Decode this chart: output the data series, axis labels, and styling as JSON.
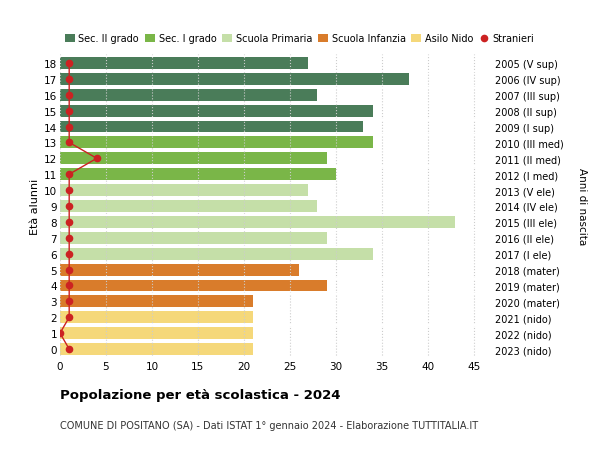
{
  "ages": [
    18,
    17,
    16,
    15,
    14,
    13,
    12,
    11,
    10,
    9,
    8,
    7,
    6,
    5,
    4,
    3,
    2,
    1,
    0
  ],
  "years": [
    "2005 (V sup)",
    "2006 (IV sup)",
    "2007 (III sup)",
    "2008 (II sup)",
    "2009 (I sup)",
    "2010 (III med)",
    "2011 (II med)",
    "2012 (I med)",
    "2013 (V ele)",
    "2014 (IV ele)",
    "2015 (III ele)",
    "2016 (II ele)",
    "2017 (I ele)",
    "2018 (mater)",
    "2019 (mater)",
    "2020 (mater)",
    "2021 (nido)",
    "2022 (nido)",
    "2023 (nido)"
  ],
  "values": [
    27,
    38,
    28,
    34,
    33,
    34,
    29,
    30,
    27,
    28,
    43,
    29,
    34,
    26,
    29,
    21,
    21,
    21,
    21
  ],
  "stranieri": [
    1,
    1,
    1,
    1,
    1,
    1,
    4,
    1,
    1,
    1,
    1,
    1,
    1,
    1,
    1,
    1,
    1,
    0,
    1
  ],
  "bar_colors": [
    "#4a7c59",
    "#4a7c59",
    "#4a7c59",
    "#4a7c59",
    "#4a7c59",
    "#7ab648",
    "#7ab648",
    "#7ab648",
    "#c5dfa8",
    "#c5dfa8",
    "#c5dfa8",
    "#c5dfa8",
    "#c5dfa8",
    "#d97c2b",
    "#d97c2b",
    "#d97c2b",
    "#f5d87a",
    "#f5d87a",
    "#f5d87a"
  ],
  "legend_labels": [
    "Sec. II grado",
    "Sec. I grado",
    "Scuola Primaria",
    "Scuola Infanzia",
    "Asilo Nido",
    "Stranieri"
  ],
  "legend_colors": [
    "#4a7c59",
    "#7ab648",
    "#c5dfa8",
    "#d97c2b",
    "#f5d87a",
    "#cc2222"
  ],
  "title": "Popolazione per età scolastica - 2024",
  "subtitle": "COMUNE DI POSITANO (SA) - Dati ISTAT 1° gennaio 2024 - Elaborazione TUTTITALIA.IT",
  "xlabel_left": "Età alunni",
  "xlabel_right": "Anni di nascita",
  "xlim": [
    0,
    47
  ],
  "xticks": [
    0,
    5,
    10,
    15,
    20,
    25,
    30,
    35,
    40,
    45
  ],
  "bg_color": "#ffffff",
  "grid_color": "#cccccc",
  "stranieri_color": "#cc2222",
  "bar_height": 0.75
}
